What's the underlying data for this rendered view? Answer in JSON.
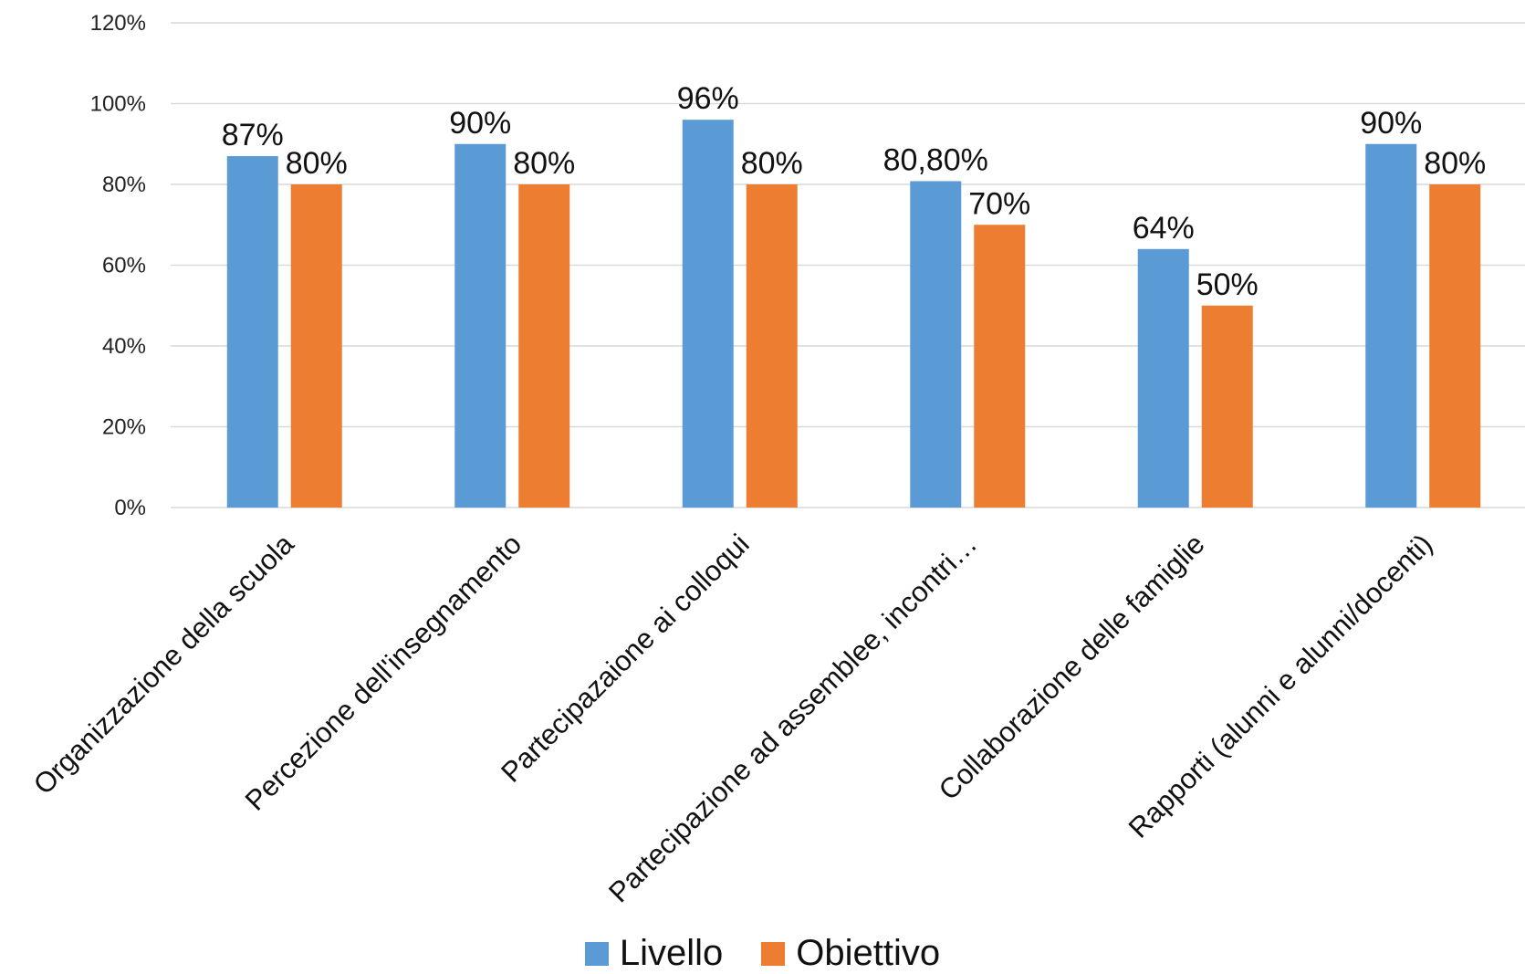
{
  "chart_data": {
    "type": "bar",
    "categories": [
      "Organizzazione della scuola",
      "Percezione dell'insegnamento",
      "Partecipazaione ai colloqui",
      "Partecipazione ad assemblee, incontri…",
      "Collaborazione delle famiglie",
      "Rapporti (alunni e alunni/docenti)"
    ],
    "series": [
      {
        "name": "Livello",
        "color": "#5b9bd5",
        "values": [
          87,
          90,
          96,
          80.8,
          64,
          90
        ],
        "labels": [
          "87%",
          "90%",
          "96%",
          "80,80%",
          "64%",
          "90%"
        ]
      },
      {
        "name": "Obiettivo",
        "color": "#ed7d31",
        "values": [
          80,
          80,
          80,
          70,
          50,
          80
        ],
        "labels": [
          "80%",
          "80%",
          "80%",
          "70%",
          "50%",
          "80%"
        ]
      }
    ],
    "ylim": [
      0,
      120
    ],
    "yticks": [
      0,
      20,
      40,
      60,
      80,
      100,
      120
    ],
    "ytick_labels": [
      "0%",
      "20%",
      "40%",
      "60%",
      "80%",
      "100%",
      "120%"
    ],
    "grid": true,
    "legend_position": "bottom"
  }
}
